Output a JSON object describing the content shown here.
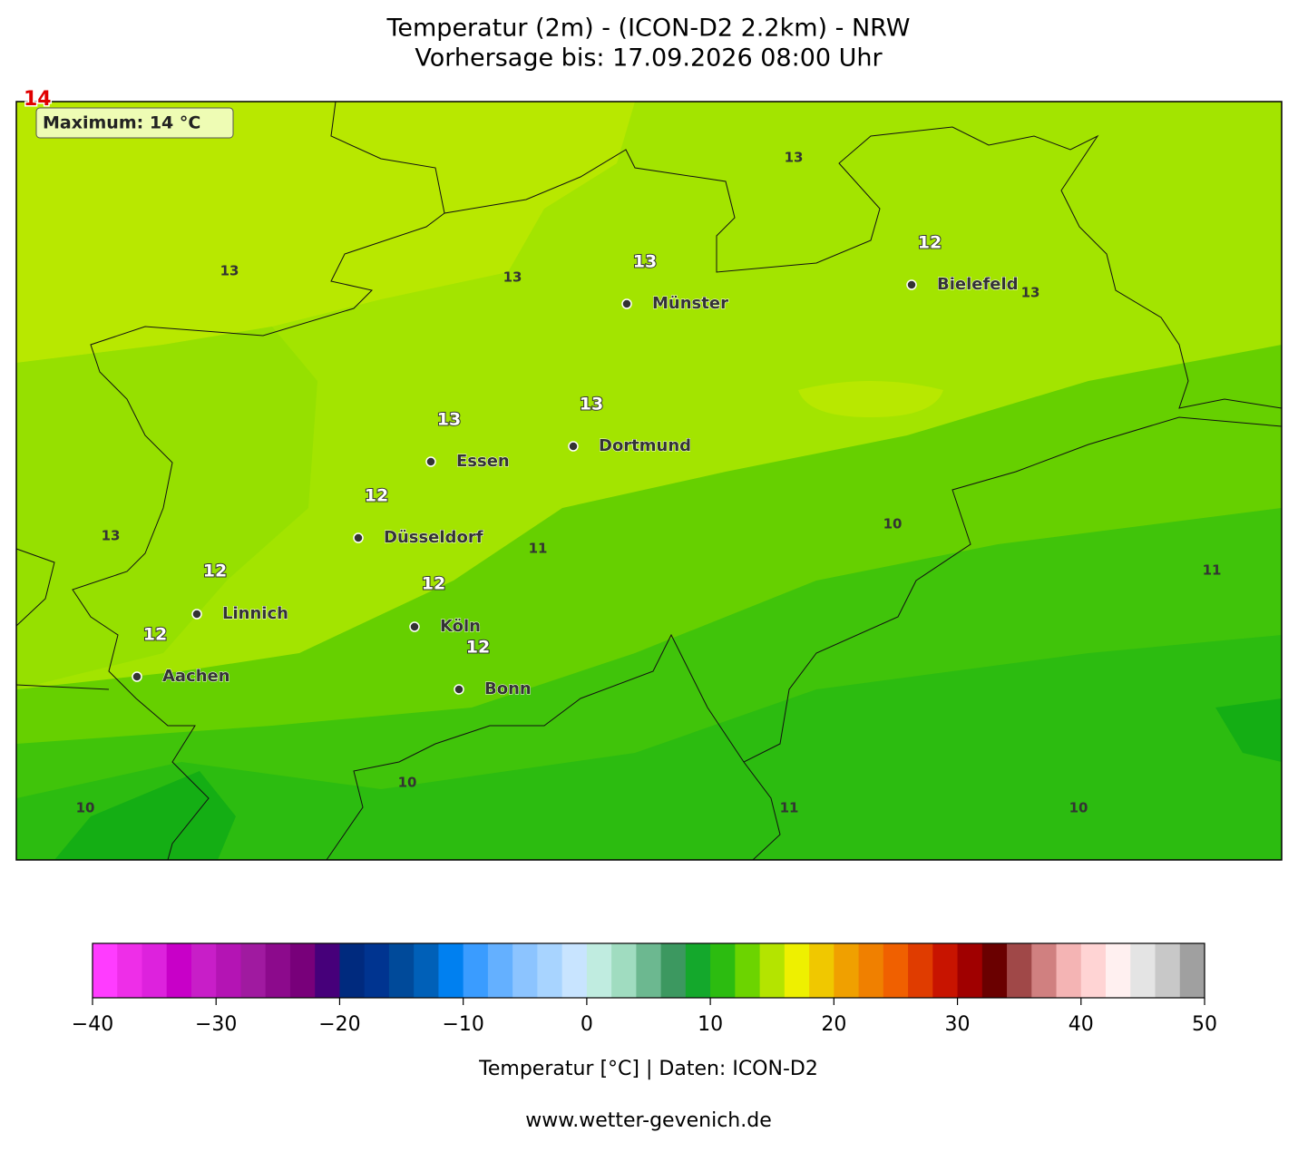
{
  "title": "Temperatur (2m) - (ICON-D2 2.2km) - NRW",
  "subtitle": "Vorhersage bis: 17.09.2026 08:00 Uhr",
  "map": {
    "max_marker": "14",
    "max_box": "Maximum: 14 °C",
    "cities": [
      "Münster",
      "Bielefeld",
      "Dortmund",
      "Essen",
      "Düsseldorf",
      "Köln",
      "Linnich",
      "Aachen",
      "Bonn"
    ],
    "contour_labels": [
      13,
      13,
      13,
      13,
      12,
      13,
      13,
      13,
      12,
      13,
      11,
      10,
      12,
      12,
      12,
      12,
      11,
      10,
      10,
      11,
      10
    ]
  },
  "colorbar": {
    "label": "Temperatur [°C] | Daten: ICON-D2",
    "range": [
      -40,
      50
    ],
    "ticks": [
      {
        "value": -40,
        "label": "−40"
      },
      {
        "value": -30,
        "label": "−30"
      },
      {
        "value": -20,
        "label": "−20"
      },
      {
        "value": -10,
        "label": "−10"
      },
      0,
      10,
      20,
      30,
      40,
      50
    ],
    "colors": [
      "#ff3cff",
      "#ee2ee8",
      "#dd22dd",
      "#c800c8",
      "#c81ec8",
      "#b414b4",
      "#a01aa0",
      "#8c0a8c",
      "#78007a",
      "#46007a",
      "#002a7e",
      "#003490",
      "#004a9a",
      "#0060b8",
      "#0080f0",
      "#3a9cff",
      "#64b0ff",
      "#8cc4ff",
      "#a8d4ff",
      "#c8e4ff",
      "#c0ece0",
      "#a0dcc0",
      "#6cb890",
      "#3c9860",
      "#14a82c",
      "#2cbc10",
      "#6cd400",
      "#b4e400",
      "#eef000",
      "#f0c800",
      "#f0a000",
      "#f08000",
      "#f06000",
      "#e03c00",
      "#c81400",
      "#a00000",
      "#6a0000",
      "#a04848",
      "#d08080",
      "#f4b4b4",
      "#ffd4d4",
      "#fff0f0",
      "#e4e4e4",
      "#c8c8c8",
      "#a0a0a0"
    ]
  },
  "footer": "www.wetter-gevenich.de"
}
